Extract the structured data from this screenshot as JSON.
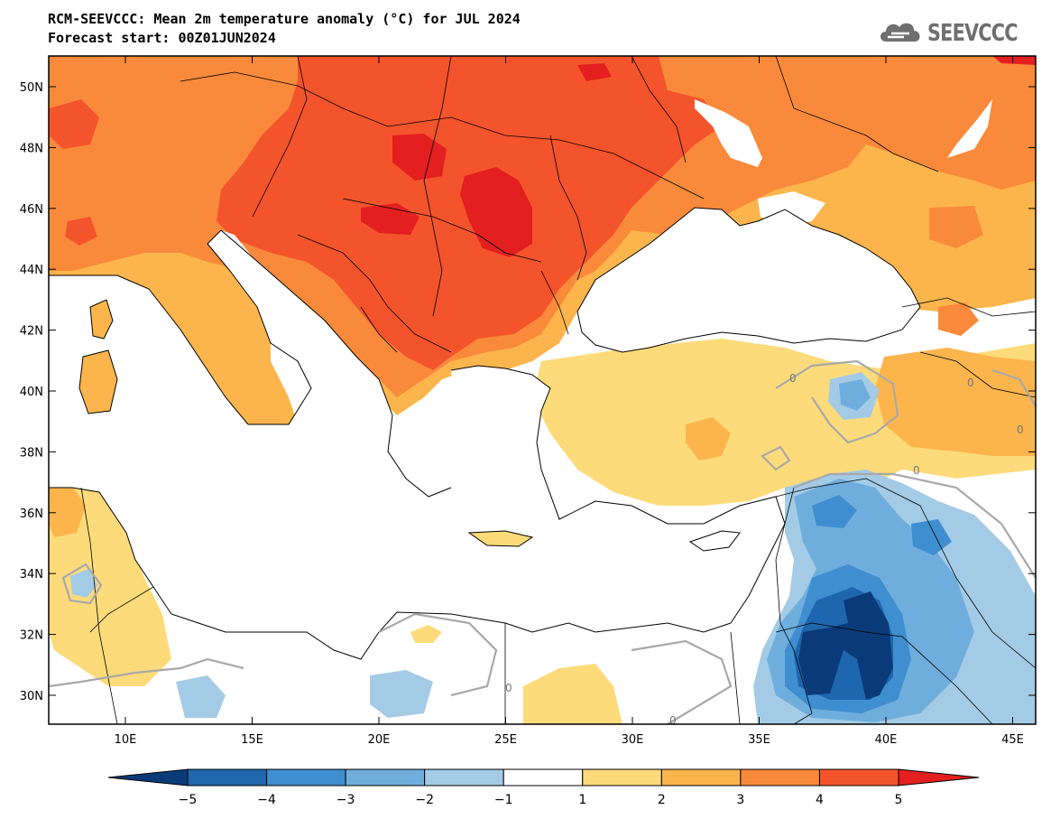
{
  "header": {
    "title_line1": "RCM-SEEVCCC: Mean 2m temperature anomaly (°C) for JUL 2024",
    "title_line2": "Forecast start: 00Z01JUN2024",
    "logo_text": "SEEVCCC",
    "logo_icon": "cloud-icon"
  },
  "map": {
    "lat_labels": [
      "50N",
      "48N",
      "46N",
      "44N",
      "42N",
      "40N",
      "38N",
      "36N",
      "34N",
      "32N",
      "30N"
    ],
    "lon_labels": [
      "10E",
      "15E",
      "20E",
      "25E",
      "30E",
      "35E",
      "40E",
      "45E"
    ],
    "contour_labels": [
      "0",
      "0",
      "0",
      "0",
      "0",
      "0"
    ]
  },
  "colorbar": {
    "tick_labels": [
      "−5",
      "−4",
      "−3",
      "−2",
      "−1",
      "1",
      "2",
      "3",
      "4",
      "5"
    ],
    "colors": [
      "#0b3a78",
      "#1e66ad",
      "#3e8ed0",
      "#6faedc",
      "#a4cbe6",
      "#ffffff",
      "#fddb7a",
      "#fcb54c",
      "#f98a3b",
      "#f4542b",
      "#e31f1f"
    ]
  }
}
